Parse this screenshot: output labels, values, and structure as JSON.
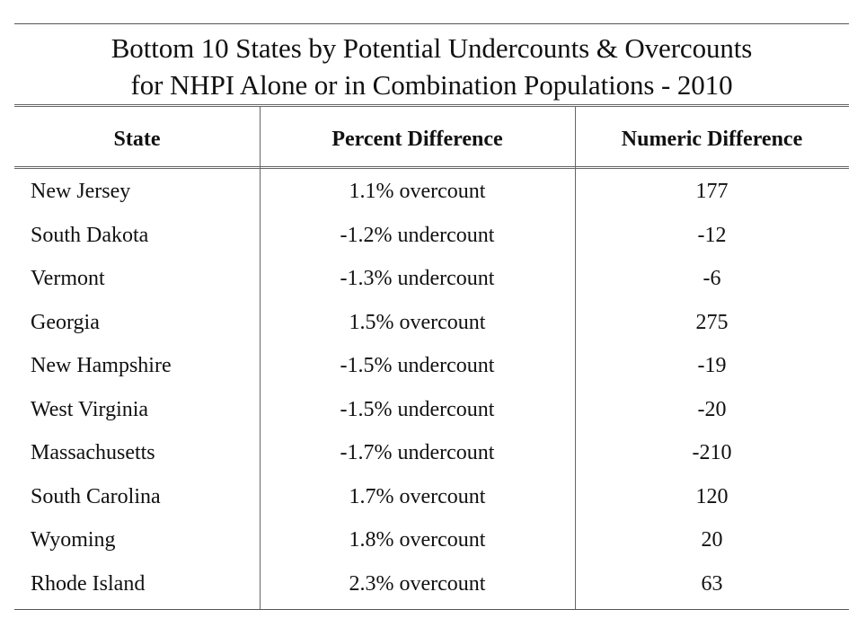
{
  "title_line1": "Bottom 10 States by Potential Undercounts & Overcounts",
  "title_line2": "for NHPI Alone or in Combination Populations - 2010",
  "headers": [
    "State",
    "Percent Difference",
    "Numeric Difference"
  ],
  "rows": [
    {
      "state": "New Jersey",
      "percent": "1.1% overcount",
      "numeric": "177"
    },
    {
      "state": "South Dakota",
      "percent": "-1.2% undercount",
      "numeric": "-12"
    },
    {
      "state": "Vermont",
      "percent": "-1.3% undercount",
      "numeric": "-6"
    },
    {
      "state": "Georgia",
      "percent": "1.5% overcount",
      "numeric": "275"
    },
    {
      "state": "New Hampshire",
      "percent": "-1.5% undercount",
      "numeric": "-19"
    },
    {
      "state": "West Virginia",
      "percent": "-1.5% undercount",
      "numeric": "-20"
    },
    {
      "state": "Massachusetts",
      "percent": "-1.7% undercount",
      "numeric": "-210"
    },
    {
      "state": "South Carolina",
      "percent": "1.7% overcount",
      "numeric": "120"
    },
    {
      "state": "Wyoming",
      "percent": "1.8% overcount",
      "numeric": "20"
    },
    {
      "state": "Rhode Island",
      "percent": "2.3% overcount",
      "numeric": "63"
    }
  ]
}
